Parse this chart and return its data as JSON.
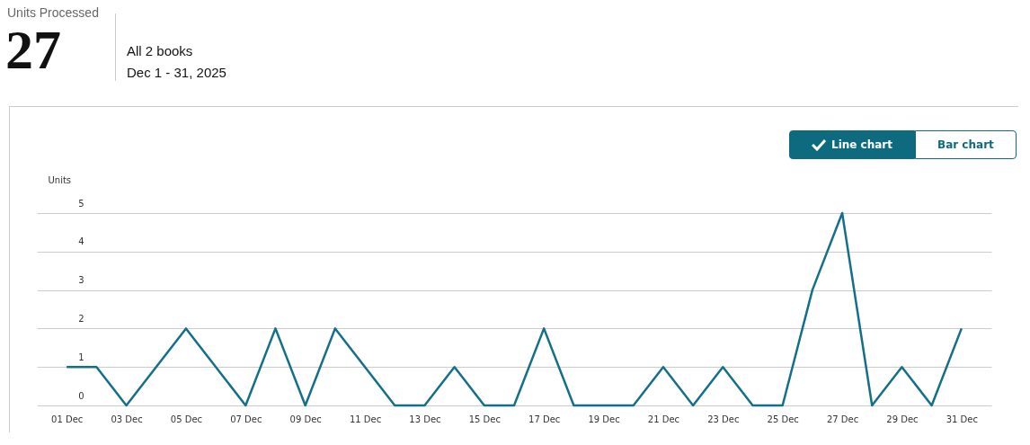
{
  "chart_data": {
    "type": "line",
    "title": "Units Processed",
    "annotations": [
      "27",
      "All 2 books",
      "Dec 1 - 31, 2025",
      "Line chart",
      "Bar chart"
    ],
    "ylabel": "Units",
    "categories": [
      "01 Dec",
      null,
      "03 Dec",
      null,
      "05 Dec",
      null,
      "07 Dec",
      null,
      "09 Dec",
      null,
      "11 Dec",
      null,
      "13 Dec",
      null,
      "15 Dec",
      null,
      "17 Dec",
      null,
      "19 Dec",
      null,
      "21 Dec",
      null,
      "23 Dec",
      null,
      "25 Dec",
      null,
      "27 Dec",
      null,
      "29 Dec",
      null,
      "31 Dec"
    ],
    "series": [
      {
        "color": "#136f8a",
        "values": [
          1,
          1,
          0,
          1,
          2,
          1,
          0,
          2,
          0,
          2,
          1,
          0,
          0,
          1,
          0,
          0,
          2,
          0,
          0,
          0,
          1,
          0,
          1,
          0,
          0,
          3,
          5,
          0,
          1,
          0,
          2
        ]
      }
    ],
    "ylim": [
      0,
      5
    ],
    "yticks": [
      0,
      1,
      2,
      3,
      4,
      5
    ],
    "grid": "y",
    "marker": "none",
    "line_style": "solid"
  }
}
